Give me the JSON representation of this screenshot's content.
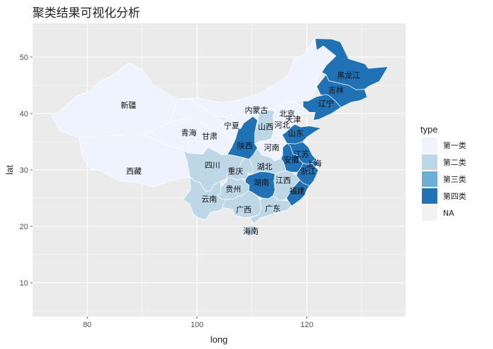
{
  "title": "聚类结果可视化分析",
  "axes": {
    "x_title": "long",
    "y_title": "lat",
    "x_ticks": [
      "80",
      "100",
      "120"
    ],
    "y_ticks": [
      "10",
      "20",
      "30",
      "40",
      "50"
    ]
  },
  "legend": {
    "title": "type",
    "items": [
      {
        "label": "第一类",
        "color": "#eff3ff"
      },
      {
        "label": "第二类",
        "color": "#bdd7e7"
      },
      {
        "label": "第三类",
        "color": "#6baed6"
      },
      {
        "label": "第四类",
        "color": "#2171b5"
      },
      {
        "label": "NA",
        "color": "#f2f2f2"
      }
    ]
  },
  "chart_data": {
    "type": "choropleth",
    "xlim": [
      70,
      138
    ],
    "ylim": [
      4,
      56
    ],
    "grid": true,
    "legend_position": "right",
    "x_ticks": [
      80,
      100,
      120
    ],
    "y_ticks": [
      10,
      20,
      30,
      40,
      50
    ],
    "provinces": [
      {
        "name": "新疆",
        "lon": 87.5,
        "lat": 41.5,
        "type": "第一类"
      },
      {
        "name": "西藏",
        "lon": 88.5,
        "lat": 29.8,
        "type": "第一类"
      },
      {
        "name": "内蒙古",
        "lon": 110.8,
        "lat": 40.6,
        "type": "第一类"
      },
      {
        "name": "青海",
        "lon": 98.5,
        "lat": 36.6,
        "type": "第一类"
      },
      {
        "name": "甘肃",
        "lon": 102.3,
        "lat": 36.0,
        "type": "第一类"
      },
      {
        "name": "宁夏",
        "lon": 106.3,
        "lat": 37.9,
        "type": "第一类"
      },
      {
        "name": "黑龙江",
        "lon": 127.6,
        "lat": 46.8,
        "type": "第四类"
      },
      {
        "name": "吉林",
        "lon": 125.3,
        "lat": 44.2,
        "type": "第四类"
      },
      {
        "name": "辽宁",
        "lon": 123.5,
        "lat": 41.8,
        "type": "第四类"
      },
      {
        "name": "北京",
        "lon": 116.4,
        "lat": 40.0,
        "type": "第一类"
      },
      {
        "name": "天津",
        "lon": 117.5,
        "lat": 39.0,
        "type": "第一类"
      },
      {
        "name": "河北",
        "lon": 115.5,
        "lat": 38.0,
        "type": "第一类"
      },
      {
        "name": "山西",
        "lon": 112.5,
        "lat": 37.7,
        "type": "第二类"
      },
      {
        "name": "山东",
        "lon": 118.0,
        "lat": 36.5,
        "type": "第四类"
      },
      {
        "name": "陕西",
        "lon": 108.7,
        "lat": 34.3,
        "type": "第四类"
      },
      {
        "name": "河南",
        "lon": 113.6,
        "lat": 34.0,
        "type": "第一类"
      },
      {
        "name": "江苏",
        "lon": 119.0,
        "lat": 32.8,
        "type": "第四类"
      },
      {
        "name": "安徽",
        "lon": 117.2,
        "lat": 31.8,
        "type": "第四类"
      },
      {
        "name": "上海",
        "lon": 121.3,
        "lat": 31.2,
        "type": "第四类"
      },
      {
        "name": "浙江",
        "lon": 120.2,
        "lat": 29.8,
        "type": "第四类"
      },
      {
        "name": "湖北",
        "lon": 112.3,
        "lat": 30.6,
        "type": "第二类"
      },
      {
        "name": "四川",
        "lon": 102.8,
        "lat": 30.9,
        "type": "第二类"
      },
      {
        "name": "重庆",
        "lon": 107.0,
        "lat": 29.8,
        "type": "第二类"
      },
      {
        "name": "湖南",
        "lon": 111.7,
        "lat": 27.8,
        "type": "第四类"
      },
      {
        "name": "江西",
        "lon": 115.7,
        "lat": 28.2,
        "type": "第二类"
      },
      {
        "name": "贵州",
        "lon": 106.6,
        "lat": 26.6,
        "type": "第二类"
      },
      {
        "name": "福建",
        "lon": 118.2,
        "lat": 26.3,
        "type": "第四类"
      },
      {
        "name": "云南",
        "lon": 102.2,
        "lat": 24.9,
        "type": "第二类"
      },
      {
        "name": "广西",
        "lon": 108.5,
        "lat": 23.0,
        "type": "第二类"
      },
      {
        "name": "广东",
        "lon": 113.8,
        "lat": 23.2,
        "type": "第二类"
      },
      {
        "name": "海南",
        "lon": 109.8,
        "lat": 19.2,
        "type": "第二类"
      }
    ]
  }
}
